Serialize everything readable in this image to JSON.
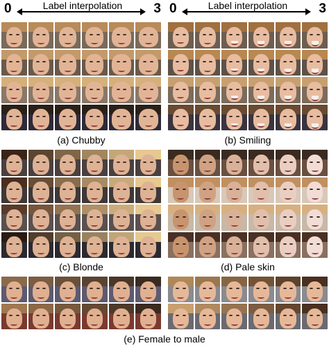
{
  "header": {
    "left_start": "0",
    "left_label": "Label interpolation",
    "left_end": "3",
    "right_start": "0",
    "right_label": "Label interpolation",
    "right_end": "3"
  },
  "captions": {
    "a": "(a) Chubby",
    "b": "(b) Smiling",
    "c": "(c) Blonde",
    "d": "(d) Pale skin",
    "e": "(e) Female to male"
  }
}
